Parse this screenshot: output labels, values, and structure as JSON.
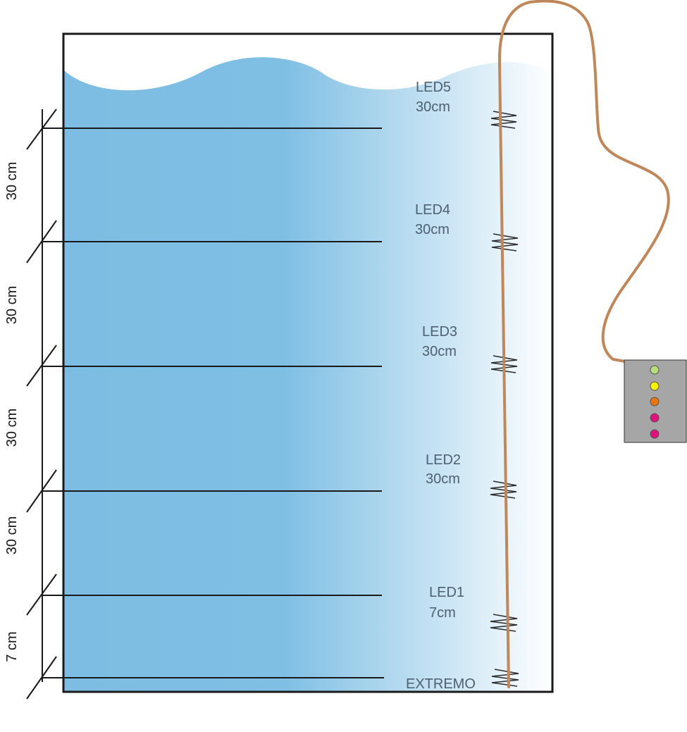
{
  "levels": [
    {
      "name": "LED5",
      "dist": "30cm"
    },
    {
      "name": "LED4",
      "dist": "30cm"
    },
    {
      "name": "LED3",
      "dist": "30cm"
    },
    {
      "name": "LED2",
      "dist": "30cm"
    },
    {
      "name": "LED1",
      "dist": "7cm"
    }
  ],
  "bottom_label": "EXTREMO",
  "dimensions": [
    "30 cm",
    "30 cm",
    "30 cm",
    "30 cm",
    "7 cm"
  ],
  "indicator_box": {
    "led_colors": [
      "#b7dd7c",
      "#fff200",
      "#e8750d",
      "#e0107f",
      "#e0107f"
    ]
  },
  "colors": {
    "water_dark": "#7dbde3",
    "water_light": "#ffffff",
    "cable": "#c0875a",
    "box": "#a6a6a6"
  }
}
